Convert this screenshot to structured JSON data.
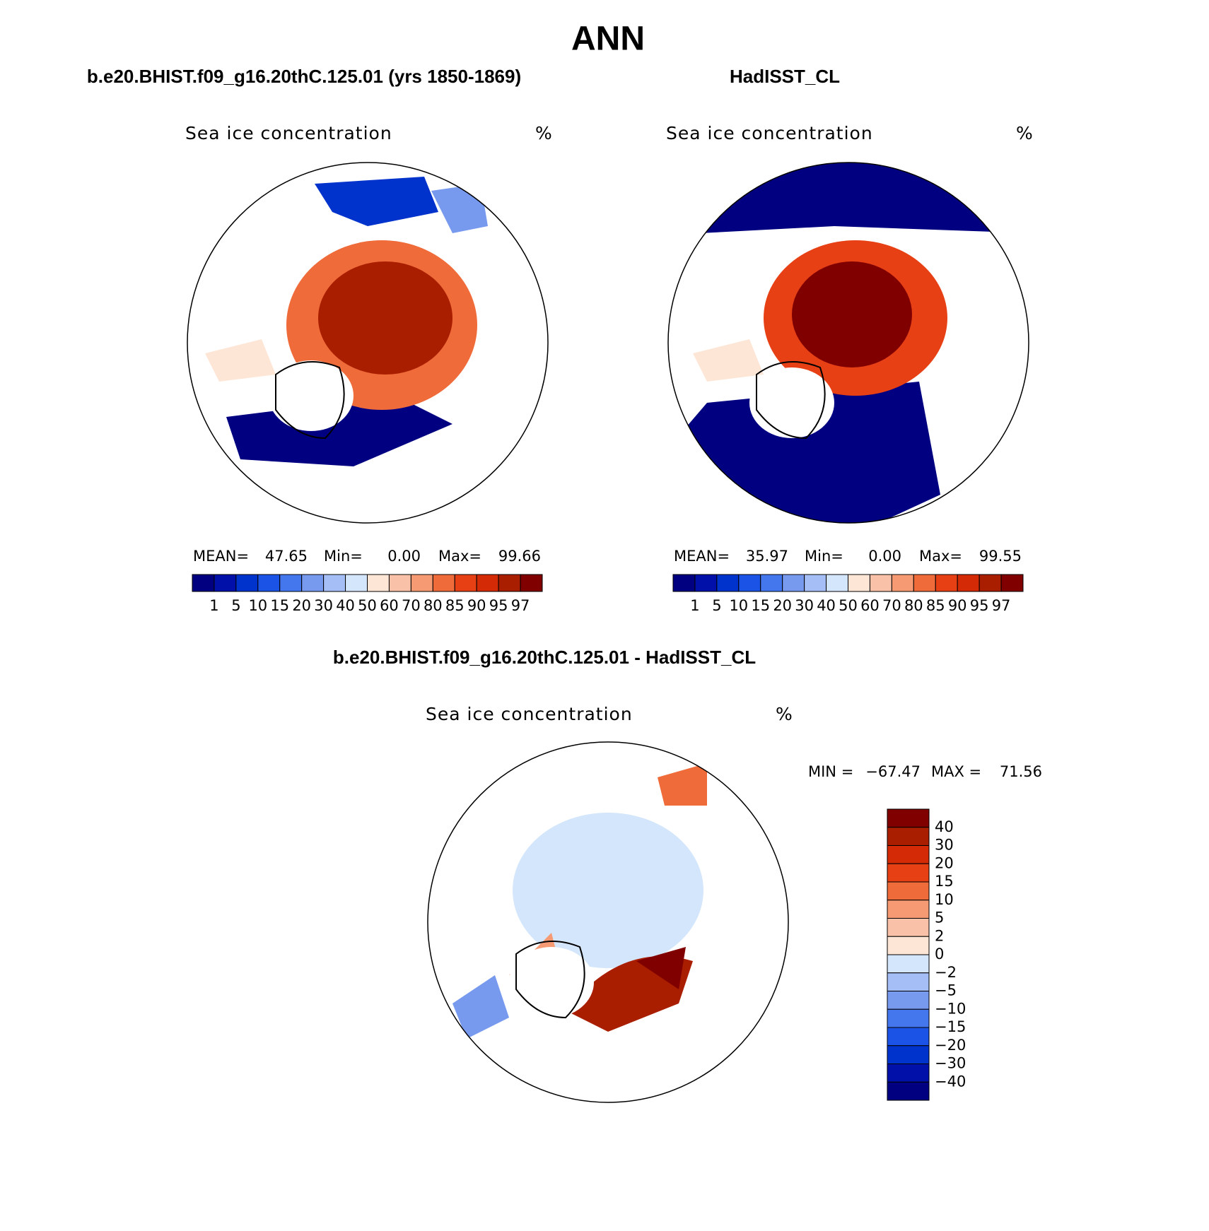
{
  "title": "ANN",
  "panels": [
    {
      "case": "b.e20.BHIST.f09_g16.20thC.125.01 (yrs 1850-1869)",
      "variable": "Sea ice concentration",
      "units": "%",
      "stats": [
        {
          "label": "MEAN=",
          "value": "47.65"
        },
        {
          "label": "Min=",
          "value": "0.00"
        },
        {
          "label": "Max=",
          "value": "99.66"
        }
      ]
    },
    {
      "case": "HadISST_CL",
      "variable": "Sea ice concentration",
      "units": "%",
      "stats": [
        {
          "label": "MEAN=",
          "value": "35.97"
        },
        {
          "label": "Min=",
          "value": "0.00"
        },
        {
          "label": "Max=",
          "value": "99.55"
        }
      ]
    }
  ],
  "colorbar": {
    "levels": [
      1,
      5,
      10,
      15,
      20,
      30,
      40,
      50,
      60,
      70,
      80,
      85,
      90,
      95,
      97
    ],
    "colors": [
      "#000080",
      "#0010a8",
      "#0033cc",
      "#1a53e6",
      "#4477ee",
      "#7799ee",
      "#a5bef5",
      "#d4e6fb",
      "#fde6d6",
      "#f9c2a8",
      "#f59a72",
      "#ef6b3a",
      "#e84015",
      "#d42a06",
      "#aa1e00",
      "#800000"
    ]
  },
  "difference": {
    "case": "b.e20.BHIST.f09_g16.20thC.125.01 - HadISST_CL",
    "variable": "Sea ice concentration",
    "units": "%",
    "min_label": "MIN =",
    "min": "−67.47",
    "max_label": "MAX =",
    "max": "71.56",
    "colorbar": {
      "levels": [
        "40",
        "30",
        "20",
        "15",
        "10",
        "5",
        "2",
        "0",
        "−2",
        "−5",
        "−10",
        "−15",
        "−20",
        "−30",
        "−40"
      ],
      "colors": [
        "#800000",
        "#aa1e00",
        "#d42a06",
        "#e84015",
        "#ef6b3a",
        "#f59a72",
        "#f9c2a8",
        "#fde6d6",
        "#d4e6fb",
        "#a5bef5",
        "#7799ee",
        "#4477ee",
        "#1a53e6",
        "#0033cc",
        "#0010a8",
        "#000080"
      ]
    }
  }
}
